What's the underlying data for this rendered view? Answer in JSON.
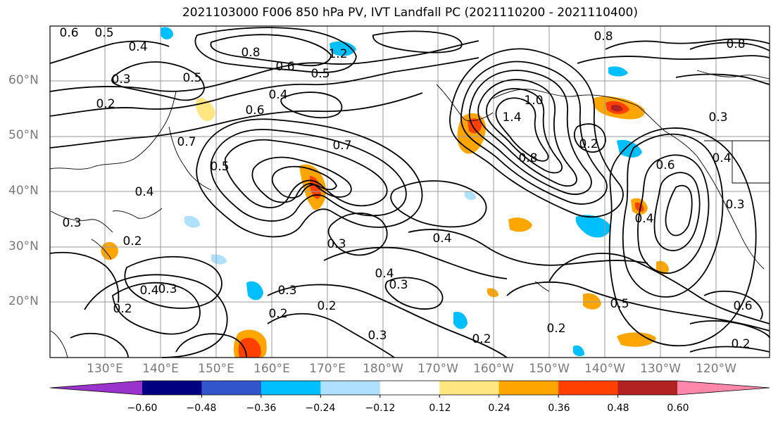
{
  "title": "2021103000 F006 850 hPa PV, IVT Landfall PC (2021110200 - 2021110400)",
  "lat_labels": [
    "60°N",
    "50°N",
    "40°N",
    "30°N",
    "20°N"
  ],
  "lon_labels": [
    "130°E",
    "140°E",
    "150°E",
    "160°E",
    "170°E",
    "180°W",
    "170°W",
    "160°W",
    "150°W",
    "140°W",
    "130°W",
    "120°W"
  ],
  "contour_labels": [
    "0.6",
    "0.5",
    "0.4",
    "1.2",
    "0.8",
    "0.6",
    "0.5",
    "0.8",
    "0.3",
    "0.5",
    "0.4",
    "0.2",
    "0.6",
    "1.0",
    "1.4",
    "0.8",
    "0.7",
    "0.5",
    "0.4",
    "0.7",
    "0.2",
    "0.3",
    "0.2",
    "0.4",
    "0.3",
    "0.4",
    "0.3",
    "0.2",
    "0.3",
    "0.2",
    "0.4",
    "0.3",
    "0.3",
    "0.2",
    "0.2",
    "0.4",
    "0.5",
    "0.3",
    "0.6",
    "0.8",
    "0.3",
    "0.2",
    "0.6",
    "0.2",
    "0.4"
  ],
  "colorbar": {
    "tick_labels": [
      "−0.60",
      "−0.48",
      "−0.36",
      "−0.24",
      "−0.12",
      "0.12",
      "0.24",
      "0.36",
      "0.48",
      "0.60"
    ],
    "colors": [
      "#9933cc",
      "#000080",
      "#3355cc",
      "#00bfff",
      "#b0e0ff",
      "#ffffff",
      "#ffe680",
      "#ffa500",
      "#ff4000",
      "#b22222",
      "#ff88aa"
    ]
  }
}
